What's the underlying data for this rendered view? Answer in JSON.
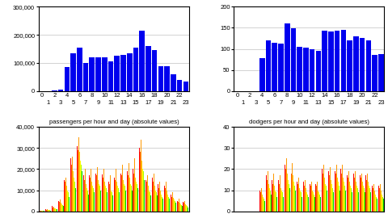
{
  "chart_data": [
    {
      "type": "bar",
      "categories": [
        "0",
        "1",
        "2",
        "3",
        "4",
        "5",
        "6",
        "7",
        "8",
        "9",
        "10",
        "11",
        "12",
        "13",
        "14",
        "15",
        "16",
        "17",
        "18",
        "19",
        "20",
        "21",
        "22",
        "23"
      ],
      "values": [
        500,
        1000,
        2000,
        5000,
        85000,
        135000,
        155000,
        100000,
        120000,
        120000,
        120000,
        105000,
        125000,
        130000,
        135000,
        155000,
        215000,
        160000,
        145000,
        90000,
        90000,
        60000,
        40000,
        35000
      ],
      "color": "#0000ee",
      "ylim": [
        0,
        300000
      ],
      "yticks": [
        0,
        {
          "value": 100000,
          "label": "100,000"
        },
        {
          "value": 200000,
          "label": "200,000"
        },
        {
          "value": 300000,
          "label": "300,000"
        }
      ],
      "grid": true
    },
    {
      "type": "bar",
      "categories": [
        "0",
        "1",
        "2",
        "3",
        "4",
        "5",
        "6",
        "7",
        "8",
        "9",
        "10",
        "11",
        "12",
        "13",
        "14",
        "15",
        "16",
        "17",
        "18",
        "19",
        "20",
        "21",
        "22",
        "23"
      ],
      "values": [
        0,
        0,
        0,
        0,
        78,
        120,
        115,
        112,
        160,
        148,
        105,
        103,
        100,
        95,
        143,
        142,
        143,
        144,
        120,
        130,
        125,
        120,
        85,
        88
      ],
      "color": "#0000ee",
      "ylim": [
        0,
        200
      ],
      "yticks": [
        0,
        50,
        100,
        150,
        200
      ],
      "grid": true
    },
    {
      "type": "bar",
      "title": "passengers per hour and day (absolute values)",
      "categories": [
        null,
        null,
        null,
        null,
        null,
        null,
        null,
        null,
        null,
        null,
        null,
        null,
        null,
        null,
        null,
        null,
        null,
        null,
        null,
        null,
        null,
        null,
        null,
        null
      ],
      "series": [
        {
          "color": "#ff0000",
          "values": [
            500,
            1200,
            2500,
            5000,
            15000,
            25000,
            31000,
            17000,
            17000,
            18000,
            17500,
            14000,
            16000,
            18000,
            19000,
            20000,
            30000,
            15000,
            16000,
            13000,
            12000,
            8000,
            5000,
            4500
          ]
        },
        {
          "color": "#ff6600",
          "values": [
            400,
            900,
            1800,
            4500,
            14000,
            22000,
            29000,
            15000,
            16000,
            17000,
            16000,
            13000,
            15000,
            17000,
            17000,
            18000,
            28000,
            14000,
            14000,
            11000,
            11000,
            7000,
            4500,
            4000
          ]
        },
        {
          "color": "#ff9900",
          "values": [
            450,
            1100,
            2200,
            5500,
            16000,
            26000,
            35000,
            20000,
            20000,
            21000,
            20000,
            17000,
            20000,
            22000,
            23000,
            25000,
            34000,
            17000,
            18000,
            14000,
            14000,
            9000,
            6000,
            5000
          ]
        },
        {
          "color": "#ffcc00",
          "values": [
            400,
            800,
            1600,
            4000,
            12000,
            19000,
            28000,
            13000,
            14000,
            15000,
            14000,
            11000,
            14000,
            15000,
            16000,
            16000,
            24000,
            12000,
            12000,
            10000,
            10000,
            6500,
            4000,
            3500
          ]
        },
        {
          "color": "#ffff00",
          "values": [
            350,
            700,
            1400,
            3500,
            10000,
            16000,
            24000,
            11000,
            12000,
            13000,
            12000,
            10000,
            12000,
            13000,
            13000,
            14000,
            20000,
            10000,
            10000,
            8000,
            8000,
            5500,
            3500,
            3000
          ]
        },
        {
          "color": "#aaff00",
          "values": [
            300,
            600,
            1200,
            3000,
            9000,
            14000,
            22000,
            10000,
            11000,
            12000,
            11000,
            9000,
            11000,
            12000,
            12000,
            13000,
            19000,
            9000,
            9000,
            7000,
            7000,
            5000,
            3000,
            2500
          ]
        },
        {
          "color": "#00cc00",
          "values": [
            200,
            500,
            1000,
            2500,
            7000,
            11000,
            19000,
            8000,
            9000,
            10000,
            9000,
            7500,
            9000,
            10000,
            10000,
            11000,
            15000,
            7500,
            7500,
            6000,
            6000,
            4000,
            2500,
            2000
          ]
        }
      ],
      "ylim": [
        0,
        40000
      ],
      "yticks": [
        0,
        {
          "value": 10000,
          "label": "10,000"
        },
        {
          "value": 20000,
          "label": "20,000"
        },
        {
          "value": 30000,
          "label": "30,000"
        },
        {
          "value": 40000,
          "label": "40,000"
        }
      ],
      "grid": true,
      "tick_labels": "y"
    },
    {
      "type": "bar",
      "title": "dodgers per hour and day (absolute values)",
      "categories": [
        null,
        null,
        null,
        null,
        null,
        null,
        null,
        null,
        null,
        null,
        null,
        null,
        null,
        null,
        null,
        null,
        null,
        null,
        null,
        null,
        null,
        null,
        null,
        null
      ],
      "series": [
        {
          "color": "#ff0000",
          "values": [
            0,
            0,
            0,
            0,
            10,
            17,
            15,
            15,
            22,
            20,
            14,
            14,
            13,
            13,
            20,
            19,
            19,
            20,
            17,
            18,
            17,
            17,
            12,
            12
          ]
        },
        {
          "color": "#ff6600",
          "values": [
            0,
            0,
            0,
            0,
            9,
            15,
            13,
            13,
            20,
            18,
            13,
            12,
            12,
            12,
            18,
            17,
            18,
            18,
            16,
            16,
            16,
            15,
            11,
            11
          ]
        },
        {
          "color": "#ff9900",
          "values": [
            0,
            0,
            0,
            0,
            11,
            19,
            18,
            17,
            25,
            23,
            16,
            15,
            14,
            14,
            22,
            21,
            22,
            22,
            19,
            19,
            18,
            18,
            13,
            13
          ]
        },
        {
          "color": "#ffcc00",
          "values": [
            0,
            0,
            0,
            0,
            8,
            13,
            12,
            11,
            18,
            17,
            11,
            11,
            10,
            10,
            16,
            15,
            16,
            16,
            14,
            14,
            14,
            14,
            10,
            10
          ]
        },
        {
          "color": "#ffff00",
          "values": [
            0,
            0,
            0,
            0,
            7,
            11,
            10,
            10,
            15,
            14,
            10,
            9,
            9,
            9,
            13,
            13,
            14,
            14,
            12,
            12,
            12,
            12,
            8,
            8
          ]
        },
        {
          "color": "#aaff00",
          "values": [
            0,
            0,
            0,
            0,
            6,
            10,
            9,
            9,
            13,
            12,
            9,
            8,
            8,
            8,
            12,
            11,
            12,
            12,
            11,
            11,
            11,
            11,
            7,
            7
          ]
        },
        {
          "color": "#00cc00",
          "values": [
            0,
            0,
            0,
            0,
            5,
            8,
            7,
            7,
            11,
            10,
            7,
            7,
            7,
            7,
            10,
            9,
            10,
            10,
            9,
            9,
            9,
            9,
            6,
            6
          ]
        }
      ],
      "ylim": [
        0,
        40
      ],
      "yticks": [
        0,
        10,
        20,
        30,
        40
      ],
      "grid": true,
      "tick_labels": "y"
    }
  ]
}
